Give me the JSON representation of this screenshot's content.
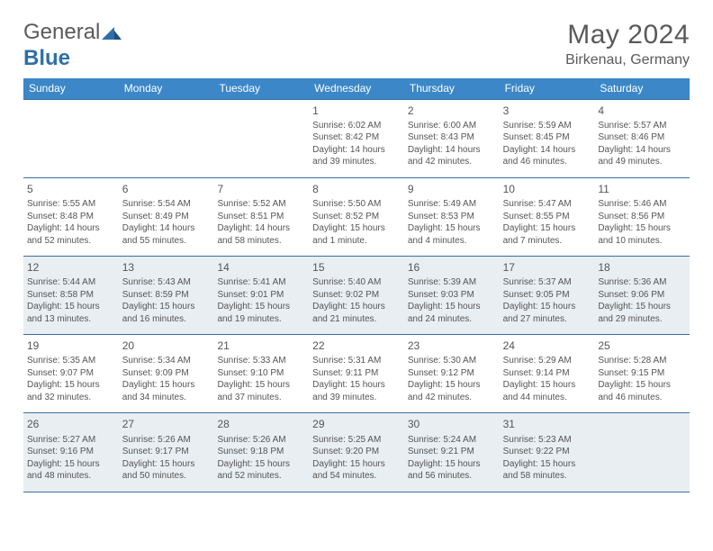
{
  "logo": {
    "word1": "General",
    "word2": "Blue"
  },
  "title": "May 2024",
  "location": "Birkenau, Germany",
  "colors": {
    "header_bg": "#3b87c8",
    "header_text": "#ffffff",
    "row_border": "#3b6fa0",
    "alt_bg": "#e9eef2",
    "text": "#555555",
    "page_bg": "#ffffff",
    "logo_gray": "#5a5a5a",
    "logo_blue": "#2f6fa8"
  },
  "weekdays": [
    "Sunday",
    "Monday",
    "Tuesday",
    "Wednesday",
    "Thursday",
    "Friday",
    "Saturday"
  ],
  "weeks": [
    {
      "alt": false,
      "days": [
        null,
        null,
        null,
        {
          "n": "1",
          "sr": "6:02 AM",
          "ss": "8:42 PM",
          "dl": "14 hours and 39 minutes."
        },
        {
          "n": "2",
          "sr": "6:00 AM",
          "ss": "8:43 PM",
          "dl": "14 hours and 42 minutes."
        },
        {
          "n": "3",
          "sr": "5:59 AM",
          "ss": "8:45 PM",
          "dl": "14 hours and 46 minutes."
        },
        {
          "n": "4",
          "sr": "5:57 AM",
          "ss": "8:46 PM",
          "dl": "14 hours and 49 minutes."
        }
      ]
    },
    {
      "alt": false,
      "days": [
        {
          "n": "5",
          "sr": "5:55 AM",
          "ss": "8:48 PM",
          "dl": "14 hours and 52 minutes."
        },
        {
          "n": "6",
          "sr": "5:54 AM",
          "ss": "8:49 PM",
          "dl": "14 hours and 55 minutes."
        },
        {
          "n": "7",
          "sr": "5:52 AM",
          "ss": "8:51 PM",
          "dl": "14 hours and 58 minutes."
        },
        {
          "n": "8",
          "sr": "5:50 AM",
          "ss": "8:52 PM",
          "dl": "15 hours and 1 minute."
        },
        {
          "n": "9",
          "sr": "5:49 AM",
          "ss": "8:53 PM",
          "dl": "15 hours and 4 minutes."
        },
        {
          "n": "10",
          "sr": "5:47 AM",
          "ss": "8:55 PM",
          "dl": "15 hours and 7 minutes."
        },
        {
          "n": "11",
          "sr": "5:46 AM",
          "ss": "8:56 PM",
          "dl": "15 hours and 10 minutes."
        }
      ]
    },
    {
      "alt": true,
      "days": [
        {
          "n": "12",
          "sr": "5:44 AM",
          "ss": "8:58 PM",
          "dl": "15 hours and 13 minutes."
        },
        {
          "n": "13",
          "sr": "5:43 AM",
          "ss": "8:59 PM",
          "dl": "15 hours and 16 minutes."
        },
        {
          "n": "14",
          "sr": "5:41 AM",
          "ss": "9:01 PM",
          "dl": "15 hours and 19 minutes."
        },
        {
          "n": "15",
          "sr": "5:40 AM",
          "ss": "9:02 PM",
          "dl": "15 hours and 21 minutes."
        },
        {
          "n": "16",
          "sr": "5:39 AM",
          "ss": "9:03 PM",
          "dl": "15 hours and 24 minutes."
        },
        {
          "n": "17",
          "sr": "5:37 AM",
          "ss": "9:05 PM",
          "dl": "15 hours and 27 minutes."
        },
        {
          "n": "18",
          "sr": "5:36 AM",
          "ss": "9:06 PM",
          "dl": "15 hours and 29 minutes."
        }
      ]
    },
    {
      "alt": false,
      "days": [
        {
          "n": "19",
          "sr": "5:35 AM",
          "ss": "9:07 PM",
          "dl": "15 hours and 32 minutes."
        },
        {
          "n": "20",
          "sr": "5:34 AM",
          "ss": "9:09 PM",
          "dl": "15 hours and 34 minutes."
        },
        {
          "n": "21",
          "sr": "5:33 AM",
          "ss": "9:10 PM",
          "dl": "15 hours and 37 minutes."
        },
        {
          "n": "22",
          "sr": "5:31 AM",
          "ss": "9:11 PM",
          "dl": "15 hours and 39 minutes."
        },
        {
          "n": "23",
          "sr": "5:30 AM",
          "ss": "9:12 PM",
          "dl": "15 hours and 42 minutes."
        },
        {
          "n": "24",
          "sr": "5:29 AM",
          "ss": "9:14 PM",
          "dl": "15 hours and 44 minutes."
        },
        {
          "n": "25",
          "sr": "5:28 AM",
          "ss": "9:15 PM",
          "dl": "15 hours and 46 minutes."
        }
      ]
    },
    {
      "alt": true,
      "days": [
        {
          "n": "26",
          "sr": "5:27 AM",
          "ss": "9:16 PM",
          "dl": "15 hours and 48 minutes."
        },
        {
          "n": "27",
          "sr": "5:26 AM",
          "ss": "9:17 PM",
          "dl": "15 hours and 50 minutes."
        },
        {
          "n": "28",
          "sr": "5:26 AM",
          "ss": "9:18 PM",
          "dl": "15 hours and 52 minutes."
        },
        {
          "n": "29",
          "sr": "5:25 AM",
          "ss": "9:20 PM",
          "dl": "15 hours and 54 minutes."
        },
        {
          "n": "30",
          "sr": "5:24 AM",
          "ss": "9:21 PM",
          "dl": "15 hours and 56 minutes."
        },
        {
          "n": "31",
          "sr": "5:23 AM",
          "ss": "9:22 PM",
          "dl": "15 hours and 58 minutes."
        },
        null
      ]
    }
  ],
  "labels": {
    "sunrise": "Sunrise:",
    "sunset": "Sunset:",
    "daylight": "Daylight:"
  }
}
